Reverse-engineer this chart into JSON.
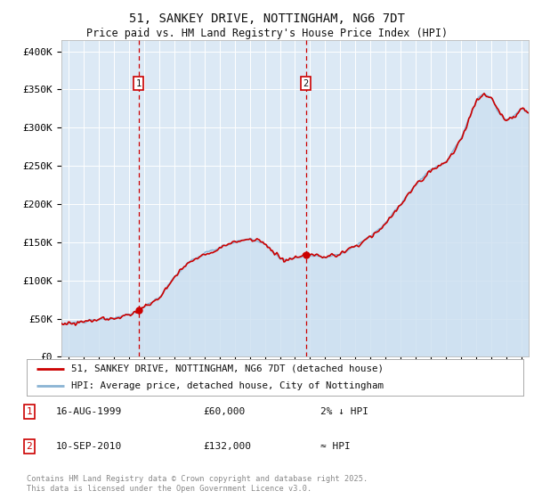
{
  "title": "51, SANKEY DRIVE, NOTTINGHAM, NG6 7DT",
  "subtitle": "Price paid vs. HM Land Registry's House Price Index (HPI)",
  "footer": "Contains HM Land Registry data © Crown copyright and database right 2025.\nThis data is licensed under the Open Government Licence v3.0.",
  "legend_line1": "51, SANKEY DRIVE, NOTTINGHAM, NG6 7DT (detached house)",
  "legend_line2": "HPI: Average price, detached house, City of Nottingham",
  "sale1_label": "1",
  "sale1_date": "16-AUG-1999",
  "sale1_price": "£60,000",
  "sale1_hpi": "2% ↓ HPI",
  "sale2_label": "2",
  "sale2_date": "10-SEP-2010",
  "sale2_price": "£132,000",
  "sale2_hpi": "≈ HPI",
  "sale1_year": 1999.62,
  "sale2_year": 2010.71,
  "sale1_price_val": 60000,
  "sale2_price_val": 132000,
  "ylabel_ticks": [
    "£0",
    "£50K",
    "£100K",
    "£150K",
    "£200K",
    "£250K",
    "£300K",
    "£350K",
    "£400K"
  ],
  "ytick_vals": [
    0,
    50000,
    100000,
    150000,
    200000,
    250000,
    300000,
    350000,
    400000
  ],
  "ylim": [
    0,
    415000
  ],
  "xlim": [
    1994.5,
    2025.5
  ],
  "background_color": "#ffffff",
  "plot_bg_color": "#dce9f5",
  "grid_color": "#ffffff",
  "hpi_line_color": "#8ab4d4",
  "hpi_fill_color": "#ccdff0",
  "price_line_color": "#cc0000",
  "marker_box_color": "#cc0000",
  "vline_color": "#cc0000",
  "title_fontsize": 10,
  "subtitle_fontsize": 8.5,
  "axis_fontsize": 8
}
